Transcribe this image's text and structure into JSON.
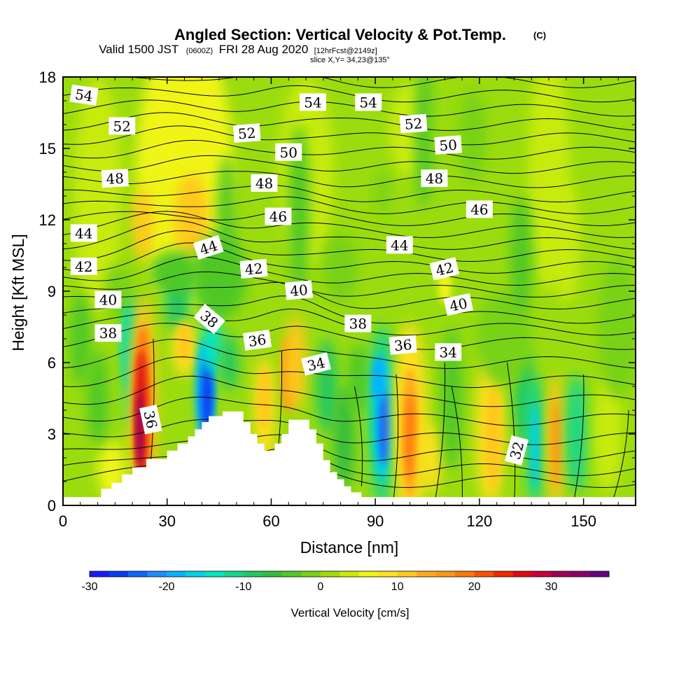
{
  "header": {
    "title_main": "Angled Section: Vertical Velocity & Pot.Temp.",
    "title_units": "(C)",
    "valid_a": "Valid 1500 JST",
    "valid_b": "(0600Z)",
    "valid_c": "FRI 28 Aug 2020",
    "valid_d": "[12hrFcst@2149z]",
    "slice": "slice X,Y= 34,23@135°"
  },
  "colors": {
    "background": "#ffffff",
    "terrain": "#ffffff",
    "contour": "#000000"
  },
  "chart_data": {
    "type": "heatmap",
    "xlabel": "Distance [nm]",
    "ylabel": "Height [Kft MSL]",
    "xlim": [
      0,
      165
    ],
    "ylim": [
      0,
      18
    ],
    "x_ticks": [
      "0",
      "30",
      "60",
      "90",
      "120",
      "150"
    ],
    "y_ticks": [
      "0",
      "3",
      "6",
      "9",
      "12",
      "15",
      "18"
    ],
    "x_tick_values": [
      0,
      30,
      60,
      90,
      120,
      150
    ],
    "y_tick_values": [
      0,
      3,
      6,
      9,
      12,
      15,
      18
    ],
    "colorbar": {
      "label": "Vertical Velocity [cm/s]",
      "min": -30,
      "max": 37.5,
      "step": 2.5,
      "tick_labels": [
        "-30",
        "-20",
        "-10",
        "0",
        "10",
        "20",
        "30"
      ],
      "tick_values": [
        -30,
        -20,
        -10,
        0,
        10,
        20,
        30
      ],
      "colors": [
        "#1a1aff",
        "#0a3cf0",
        "#1464ff",
        "#1e8cff",
        "#00b4ff",
        "#00d2e6",
        "#00e6c3",
        "#14d78c",
        "#23c864",
        "#32be3c",
        "#50c828",
        "#78d214",
        "#a0dc0a",
        "#c8eb0a",
        "#f0f514",
        "#ffe11e",
        "#ffc81e",
        "#ffaa1e",
        "#ff9614",
        "#ff780a",
        "#ff5000",
        "#f02800",
        "#dc0a14",
        "#c8003c",
        "#a00055",
        "#8c0064",
        "#640082"
      ]
    },
    "contour_labels": [
      {
        "text": "54",
        "x": 6,
        "y": 17.2,
        "angle": 8
      },
      {
        "text": "52",
        "x": 17,
        "y": 15.9,
        "angle": 0
      },
      {
        "text": "54",
        "x": 72,
        "y": 16.9,
        "angle": 0
      },
      {
        "text": "54",
        "x": 88,
        "y": 16.9,
        "angle": 0
      },
      {
        "text": "52",
        "x": 53,
        "y": 15.6,
        "angle": -4
      },
      {
        "text": "52",
        "x": 101,
        "y": 16.0,
        "angle": -4
      },
      {
        "text": "50",
        "x": 65,
        "y": 14.8,
        "angle": 0
      },
      {
        "text": "50",
        "x": 111,
        "y": 15.1,
        "angle": -4
      },
      {
        "text": "48",
        "x": 15,
        "y": 13.7,
        "angle": -3
      },
      {
        "text": "48",
        "x": 58,
        "y": 13.5,
        "angle": 0
      },
      {
        "text": "48",
        "x": 107,
        "y": 13.7,
        "angle": 0
      },
      {
        "text": "46",
        "x": 62,
        "y": 12.1,
        "angle": 0
      },
      {
        "text": "46",
        "x": 120,
        "y": 12.4,
        "angle": 0
      },
      {
        "text": "44",
        "x": 6,
        "y": 11.4,
        "angle": 0
      },
      {
        "text": "44",
        "x": 42,
        "y": 10.8,
        "angle": -18
      },
      {
        "text": "44",
        "x": 97,
        "y": 10.9,
        "angle": 0
      },
      {
        "text": "42",
        "x": 6,
        "y": 10.0,
        "angle": 0
      },
      {
        "text": "42",
        "x": 55,
        "y": 9.9,
        "angle": -5
      },
      {
        "text": "42",
        "x": 110,
        "y": 9.9,
        "angle": -14
      },
      {
        "text": "40",
        "x": 13,
        "y": 8.6,
        "angle": 0
      },
      {
        "text": "40",
        "x": 68,
        "y": 9.0,
        "angle": -5
      },
      {
        "text": "40",
        "x": 114,
        "y": 8.4,
        "angle": -12
      },
      {
        "text": "38",
        "x": 13,
        "y": 7.2,
        "angle": 0
      },
      {
        "text": "38",
        "x": 42,
        "y": 7.8,
        "angle": 40
      },
      {
        "text": "38",
        "x": 85,
        "y": 7.6,
        "angle": 0
      },
      {
        "text": "36",
        "x": 56,
        "y": 6.9,
        "angle": -8
      },
      {
        "text": "36",
        "x": 98,
        "y": 6.7,
        "angle": -5
      },
      {
        "text": "34",
        "x": 73,
        "y": 5.9,
        "angle": -14
      },
      {
        "text": "34",
        "x": 111,
        "y": 6.4,
        "angle": 0
      },
      {
        "text": "36",
        "x": 25,
        "y": 3.6,
        "angle": 78
      },
      {
        "text": "32",
        "x": 131,
        "y": 2.3,
        "angle": -75
      }
    ]
  }
}
